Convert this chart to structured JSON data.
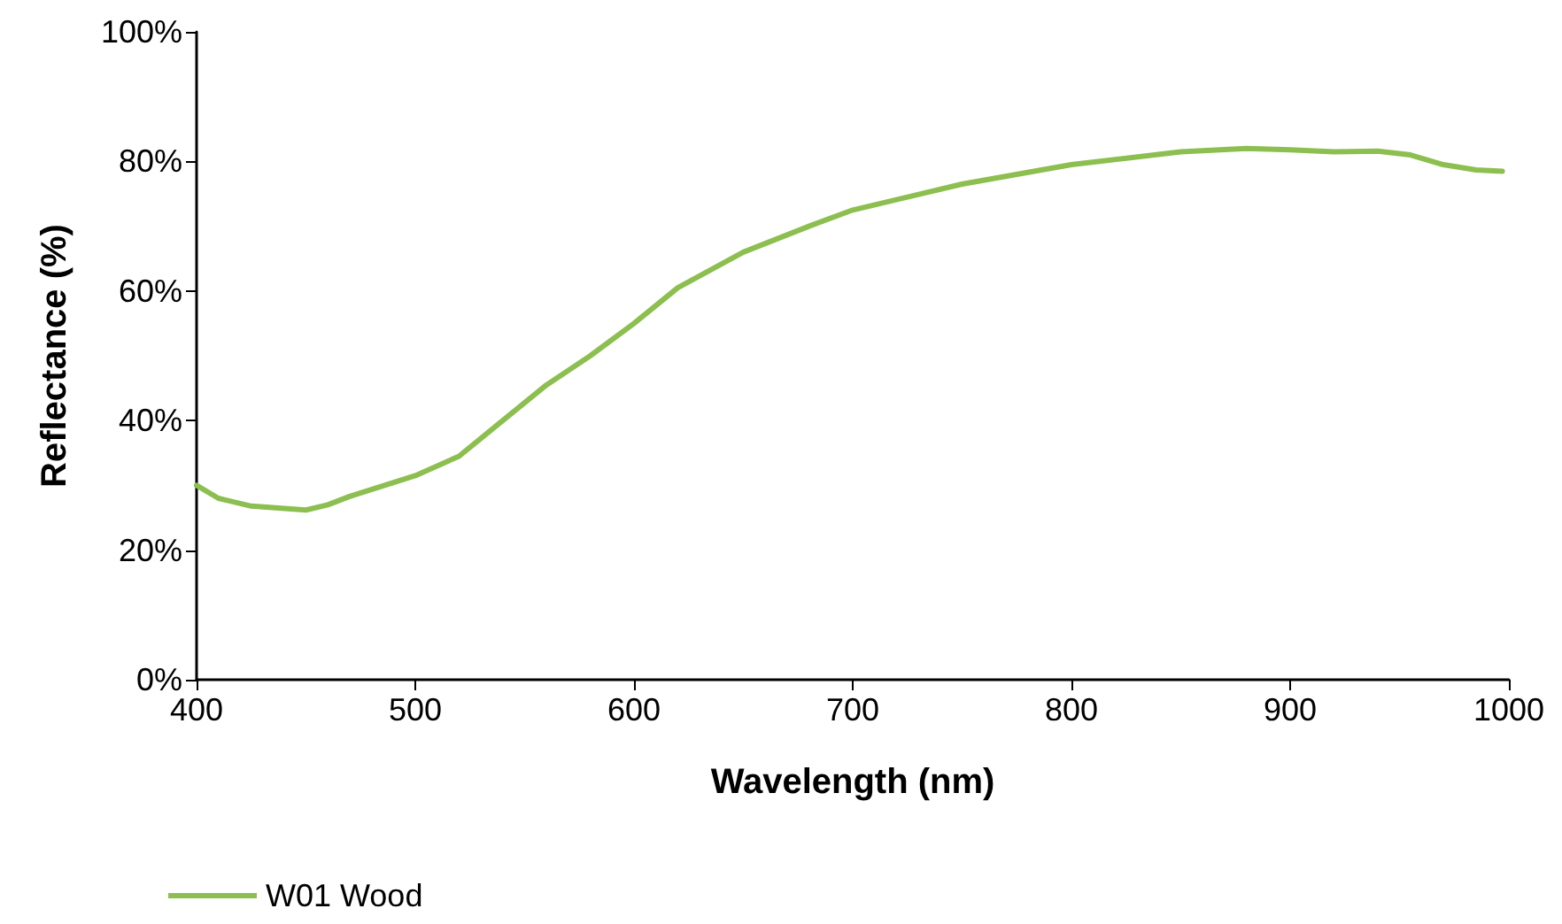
{
  "chart_data": {
    "type": "line",
    "xlabel": "Wavelength (nm)",
    "ylabel": "Reflectance (%)",
    "xlim": [
      400,
      1000
    ],
    "xticks": [
      400,
      500,
      600,
      700,
      800,
      900,
      1000
    ],
    "ylim": [
      0,
      100
    ],
    "yticks": [
      {
        "value": 0,
        "label": "0%"
      },
      {
        "value": 20,
        "label": "20%"
      },
      {
        "value": 40,
        "label": "40%"
      },
      {
        "value": 60,
        "label": "60%"
      },
      {
        "value": 80,
        "label": "80%"
      },
      {
        "value": 100,
        "label": "100%"
      }
    ],
    "grid": false,
    "legend": "bottom left",
    "marker": "none",
    "line_style": "solid",
    "series": [
      {
        "name": "W01 Wood",
        "color": "#8cbf4f",
        "x": [
          400,
          410,
          425,
          450,
          460,
          470,
          500,
          520,
          540,
          560,
          580,
          600,
          620,
          650,
          680,
          700,
          750,
          800,
          850,
          880,
          900,
          920,
          940,
          955,
          970,
          985,
          997
        ],
        "values": [
          30,
          28,
          26.8,
          26.2,
          27,
          28.3,
          31.5,
          34.5,
          40,
          45.5,
          50,
          55,
          60.5,
          66,
          70,
          72.5,
          76.5,
          79.5,
          81.5,
          82,
          81.8,
          81.5,
          81.6,
          81,
          79.5,
          78.7,
          78.5
        ]
      }
    ]
  }
}
